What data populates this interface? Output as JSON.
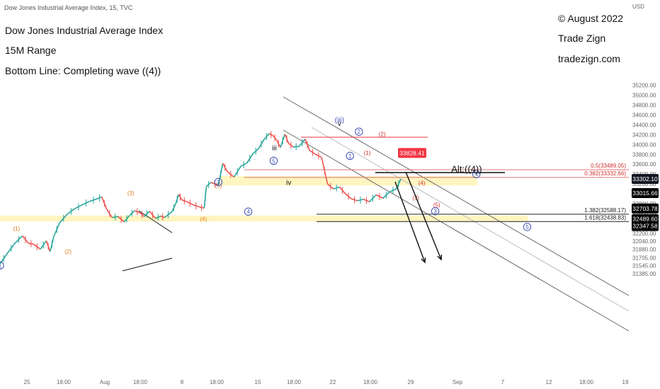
{
  "header": {
    "symbol_line": "Dow Jones Industrial Average Index, 15, TVC",
    "currency": "USD"
  },
  "titles": {
    "line1": "Dow Jones Industrial Average Index",
    "line2": "15M Range",
    "line3": "Bottom Line: Completing wave ((4))"
  },
  "credits": {
    "copyright": "© August 2022",
    "name": "Trade Zign",
    "website": "tradezign.com"
  },
  "chart_data": {
    "type": "line",
    "title": "Dow Jones Industrial Average Index",
    "ylim": [
      31385,
      35300
    ],
    "y_ticks": [
      35200,
      35000,
      34800,
      34600,
      34400,
      34200,
      34000,
      33800,
      33600,
      33400,
      33200,
      32800,
      32600,
      32200,
      32040,
      31880,
      31705,
      31545,
      31385
    ],
    "x_ticks": [
      "25",
      "18:00",
      "Aug",
      "18:00",
      "8",
      "18:00",
      "15",
      "18:00",
      "22",
      "18:00",
      "29",
      "Sep",
      "7",
      "12",
      "18:00",
      "19"
    ],
    "price_path": [
      {
        "x": 0.0,
        "y": 31580
      },
      {
        "x": 1.0,
        "y": 31800
      },
      {
        "x": 2.0,
        "y": 32000
      },
      {
        "x": 3.0,
        "y": 32150
      },
      {
        "x": 3.8,
        "y": 32000
      },
      {
        "x": 4.5,
        "y": 31980
      },
      {
        "x": 5.4,
        "y": 31880
      },
      {
        "x": 6.2,
        "y": 32050
      },
      {
        "x": 6.7,
        "y": 31830
      },
      {
        "x": 7.2,
        "y": 32140
      },
      {
        "x": 8.0,
        "y": 32420
      },
      {
        "x": 9.0,
        "y": 32590
      },
      {
        "x": 10.0,
        "y": 32700
      },
      {
        "x": 11.0,
        "y": 32780
      },
      {
        "x": 12.0,
        "y": 32850
      },
      {
        "x": 13.0,
        "y": 32900
      },
      {
        "x": 13.6,
        "y": 32940
      },
      {
        "x": 14.3,
        "y": 32680
      },
      {
        "x": 15.0,
        "y": 32520
      },
      {
        "x": 15.8,
        "y": 32540
      },
      {
        "x": 16.6,
        "y": 32430
      },
      {
        "x": 17.3,
        "y": 32560
      },
      {
        "x": 18.0,
        "y": 32660
      },
      {
        "x": 18.7,
        "y": 32620
      },
      {
        "x": 19.3,
        "y": 32540
      },
      {
        "x": 20.0,
        "y": 32650
      },
      {
        "x": 20.8,
        "y": 32500
      },
      {
        "x": 21.5,
        "y": 32550
      },
      {
        "x": 22.0,
        "y": 32520
      },
      {
        "x": 23.0,
        "y": 32640
      },
      {
        "x": 23.5,
        "y": 32800
      },
      {
        "x": 23.9,
        "y": 32990
      },
      {
        "x": 24.3,
        "y": 32880
      },
      {
        "x": 25.0,
        "y": 32840
      },
      {
        "x": 25.8,
        "y": 32780
      },
      {
        "x": 26.6,
        "y": 32740
      },
      {
        "x": 27.3,
        "y": 32710
      },
      {
        "x": 27.6,
        "y": 33150
      },
      {
        "x": 28.2,
        "y": 33230
      },
      {
        "x": 29.2,
        "y": 33180
      },
      {
        "x": 29.8,
        "y": 33620
      },
      {
        "x": 30.4,
        "y": 33450
      },
      {
        "x": 31.3,
        "y": 33340
      },
      {
        "x": 32.2,
        "y": 33560
      },
      {
        "x": 33.0,
        "y": 33620
      },
      {
        "x": 33.8,
        "y": 33810
      },
      {
        "x": 34.6,
        "y": 33920
      },
      {
        "x": 35.3,
        "y": 34100
      },
      {
        "x": 36.0,
        "y": 34220
      },
      {
        "x": 36.5,
        "y": 34180
      },
      {
        "x": 37.0,
        "y": 34090
      },
      {
        "x": 37.5,
        "y": 33940
      },
      {
        "x": 38.1,
        "y": 34210
      },
      {
        "x": 38.6,
        "y": 34020
      },
      {
        "x": 39.2,
        "y": 33950
      },
      {
        "x": 40.0,
        "y": 33960
      },
      {
        "x": 40.8,
        "y": 34110
      },
      {
        "x": 41.4,
        "y": 33880
      },
      {
        "x": 42.2,
        "y": 33800
      },
      {
        "x": 43.0,
        "y": 33740
      },
      {
        "x": 43.8,
        "y": 33200
      },
      {
        "x": 44.6,
        "y": 33100
      },
      {
        "x": 45.4,
        "y": 33140
      },
      {
        "x": 46.2,
        "y": 33000
      },
      {
        "x": 47.0,
        "y": 32900
      },
      {
        "x": 47.8,
        "y": 32860
      },
      {
        "x": 48.6,
        "y": 32890
      },
      {
        "x": 49.4,
        "y": 32840
      },
      {
        "x": 50.3,
        "y": 32980
      },
      {
        "x": 51.2,
        "y": 32910
      },
      {
        "x": 52.1,
        "y": 33040
      },
      {
        "x": 53.0,
        "y": 33100
      },
      {
        "x": 53.6,
        "y": 33300
      }
    ],
    "price_labels": [
      {
        "text": "33828.41",
        "y": 33828.41,
        "style": "red"
      },
      {
        "text": "33302.10",
        "y": 33302.1,
        "style": "dark"
      },
      {
        "text": "33015.66",
        "y": 33015.66,
        "style": "black"
      },
      {
        "text": "32703.78",
        "y": 32703.78,
        "style": "black"
      },
      {
        "text": "32489.60",
        "y": 32489.6,
        "style": "black"
      },
      {
        "text": "32347.58",
        "y": 32347.58,
        "style": "black"
      }
    ],
    "fib_levels": [
      {
        "label": "0.5(33489.05)",
        "value": 33489.05,
        "color": "#e57373"
      },
      {
        "label": "0.382(33332.66)",
        "value": 33332.66,
        "color": "#e57373"
      },
      {
        "label": "1.382(32588.17)",
        "value": 32588.17,
        "color": "#222222"
      },
      {
        "label": "1.618(32438.83)",
        "value": 32438.83,
        "color": "#222222"
      }
    ],
    "wave_labels": [
      {
        "text": "(1)",
        "x": 2.2,
        "y": 32260,
        "color": "#e07b1f",
        "circled": false
      },
      {
        "text": "(2)",
        "x": 9.1,
        "y": 31790,
        "color": "#e07b1f",
        "circled": false
      },
      {
        "text": "(3)",
        "x": 17.5,
        "y": 32970,
        "color": "#e07b1f",
        "circled": false
      },
      {
        "text": "(4)",
        "x": 27.2,
        "y": 32450,
        "color": "#e07b1f",
        "circled": false
      },
      {
        "text": "(5)",
        "x": 29.2,
        "y": 33120,
        "color": "#e07b1f",
        "circled": false
      },
      {
        "text": "1",
        "x": 0.0,
        "y": 31550,
        "color": "#3f51b5",
        "circled": true
      },
      {
        "text": "3",
        "x": 29.2,
        "y": 33240,
        "color": "#3f51b5",
        "circled": true
      },
      {
        "text": "4",
        "x": 33.2,
        "y": 32640,
        "color": "#3f51b5",
        "circled": true
      },
      {
        "text": "5",
        "x": 36.6,
        "y": 33670,
        "color": "#3f51b5",
        "circled": true
      },
      {
        "text": "1",
        "x": 46.8,
        "y": 33770,
        "color": "#3f51b5",
        "circled": true
      },
      {
        "text": "2",
        "x": 48.0,
        "y": 34260,
        "color": "#3f51b5",
        "circled": true
      },
      {
        "text": "3",
        "x": 58.2,
        "y": 32650,
        "color": "#3f51b5",
        "circled": true
      },
      {
        "text": "4",
        "x": 63.7,
        "y": 33400,
        "color": "#3f51b5",
        "circled": true
      },
      {
        "text": "5",
        "x": 70.5,
        "y": 32330,
        "color": "#3f51b5",
        "circled": true
      },
      {
        "text": "(1)",
        "x": 49.1,
        "y": 33790,
        "color": "#d32f2f",
        "circled": false
      },
      {
        "text": "(2)",
        "x": 51.1,
        "y": 34170,
        "color": "#d32f2f",
        "circled": false
      },
      {
        "text": "(3)",
        "x": 55.6,
        "y": 32880,
        "color": "#d32f2f",
        "circled": false
      },
      {
        "text": "(4)",
        "x": 56.4,
        "y": 33180,
        "color": "#d32f2f",
        "circled": false
      },
      {
        "text": "(5)",
        "x": 58.4,
        "y": 32740,
        "color": "#d32f2f",
        "circled": false
      },
      {
        "text": "iii",
        "x": 36.7,
        "y": 33880,
        "color": "#111111",
        "circled": false
      },
      {
        "text": "iv",
        "x": 38.6,
        "y": 33180,
        "color": "#111111",
        "circled": false
      },
      {
        "text": "v",
        "x": 45.4,
        "y": 34380,
        "color": "#111111",
        "circled": false
      },
      {
        "text": "(iii)",
        "x": 45.4,
        "y": 34450,
        "color": "#3f51b5",
        "circled": false
      },
      {
        "text": "Alt:((4))",
        "x": 62.4,
        "y": 33440,
        "color": "#111111",
        "circled": false
      }
    ]
  }
}
